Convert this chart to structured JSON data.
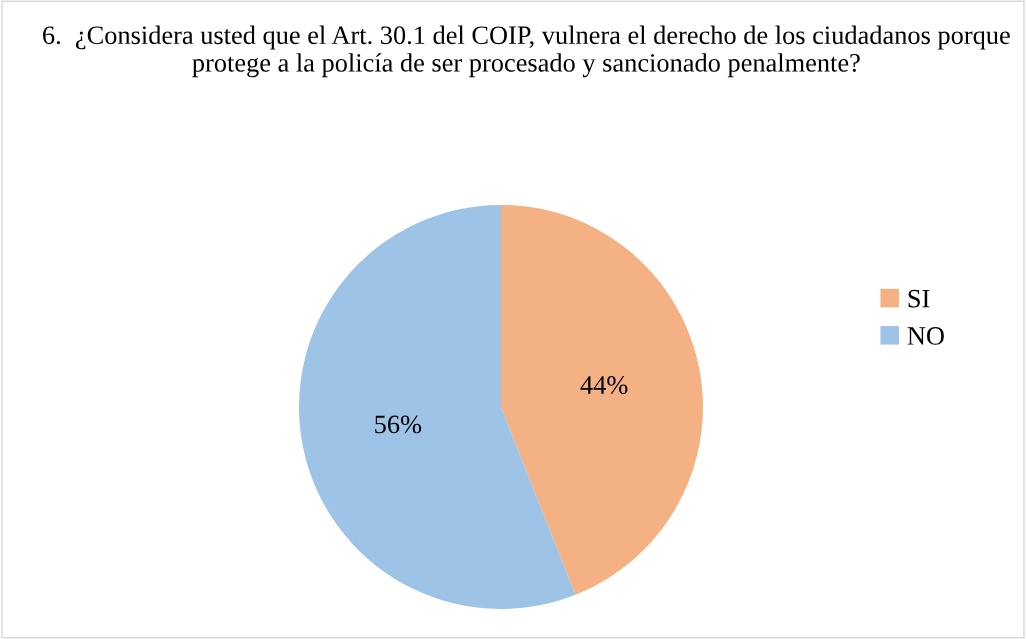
{
  "chart_data": {
    "type": "pie",
    "title": "6.  ¿Considera usted que el Art. 30.1 del COIP, vulnera el derecho de los ciudadanos porque protege a la policía de ser procesado y sancionado penalmente?",
    "categories": [
      "SI",
      "NO"
    ],
    "values": [
      44,
      56
    ],
    "colors": [
      "#f4b183",
      "#9dc3e6"
    ],
    "value_labels": [
      "44%",
      "56%"
    ],
    "legend": "right"
  }
}
